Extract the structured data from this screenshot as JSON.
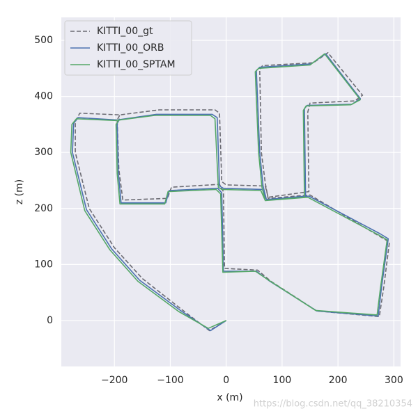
{
  "chart_data": {
    "type": "line",
    "xlabel": "x (m)",
    "ylabel": "z (m)",
    "watermark": "https://blog.csdn.net/qq_38210354",
    "xlim": [
      -295,
      312
    ],
    "ylim": [
      -82,
      541
    ],
    "xticks": [
      {
        "value": -200,
        "label": "−200"
      },
      {
        "value": -100,
        "label": "−100"
      },
      0,
      100,
      200,
      300
    ],
    "yticks": [
      0,
      100,
      200,
      300,
      400,
      500
    ],
    "grid": true,
    "legend": "upper left",
    "series": [
      {
        "name": "KITTI_00_gt",
        "color": "#6b6b73",
        "dashed": true,
        "x": [
          0,
          -30,
          -80,
          -150,
          -200,
          -245,
          -270,
          -270,
          -262,
          -190,
          -120,
          -20,
          -12,
          -8,
          0,
          70,
          75,
          148,
          146,
          150,
          230,
          244,
          182,
          156,
          65,
          60,
          63,
          70,
          75,
          150,
          275,
          292,
          282,
          274,
          162,
          80,
          56,
          -3,
          -5,
          -12,
          -98,
          -105,
          -185,
          -192,
          -195,
          -190
        ],
        "values": [
          0,
          -18,
          20,
          75,
          130,
          200,
          300,
          355,
          370,
          367,
          376,
          376,
          370,
          248,
          242,
          240,
          220,
          230,
          372,
          388,
          392,
          402,
          478,
          460,
          455,
          448,
          300,
          245,
          218,
          224,
          150,
          140,
          60,
          7,
          17,
          70,
          90,
          93,
          230,
          243,
          238,
          218,
          215,
          270,
          358,
          367
        ]
      },
      {
        "name": "KITTI_00_ORB",
        "color": "#4c72b0",
        "dashed": false,
        "x": [
          0,
          -28,
          -82,
          -155,
          -205,
          -250,
          -275,
          -273,
          -265,
          -195,
          -125,
          -25,
          -16,
          -12,
          -5,
          65,
          72,
          142,
          140,
          145,
          225,
          240,
          178,
          152,
          60,
          54,
          60,
          66,
          72,
          148,
          275,
          290,
          278,
          272,
          162,
          78,
          54,
          -5,
          -8,
          -15,
          -102,
          -108,
          -188,
          -193,
          -195,
          -190
        ],
        "values": [
          0,
          -18,
          18,
          72,
          128,
          198,
          300,
          352,
          362,
          358,
          368,
          368,
          362,
          240,
          236,
          234,
          216,
          222,
          378,
          384,
          386,
          396,
          476,
          458,
          452,
          446,
          300,
          240,
          216,
          222,
          155,
          146,
          60,
          8,
          17,
          70,
          88,
          88,
          228,
          236,
          232,
          210,
          210,
          265,
          352,
          360
        ]
      },
      {
        "name": "KITTI_00_SPTAM",
        "color": "#55a868",
        "dashed": false,
        "x": [
          0,
          -32,
          -85,
          -158,
          -208,
          -253,
          -278,
          -276,
          -268,
          -198,
          -128,
          -28,
          -20,
          -14,
          -8,
          62,
          70,
          140,
          138,
          143,
          223,
          240,
          176,
          150,
          58,
          52,
          58,
          64,
          70,
          146,
          272,
          288,
          276,
          270,
          160,
          76,
          52,
          -6,
          -10,
          -18,
          -104,
          -110,
          -190,
          -195,
          -197,
          -192
        ],
        "values": [
          0,
          -14,
          16,
          70,
          126,
          196,
          300,
          350,
          360,
          357,
          366,
          366,
          360,
          238,
          234,
          232,
          214,
          220,
          375,
          383,
          385,
          394,
          476,
          456,
          450,
          444,
          300,
          238,
          214,
          220,
          153,
          144,
          58,
          10,
          18,
          72,
          88,
          86,
          226,
          234,
          230,
          208,
          208,
          262,
          350,
          358
        ]
      }
    ]
  }
}
